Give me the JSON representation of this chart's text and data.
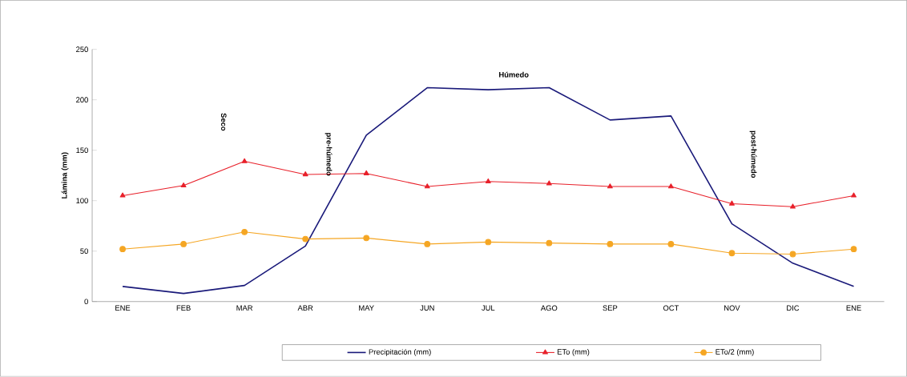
{
  "chart_data": {
    "type": "line",
    "ylabel": "Lámina (mm)",
    "categories": [
      "ENE",
      "FEB",
      "MAR",
      "ABR",
      "MAY",
      "JUN",
      "JUL",
      "AGO",
      "SEP",
      "OCT",
      "NOV",
      "DIC",
      "ENE"
    ],
    "series": [
      {
        "name": "Precipitación (mm)",
        "color": "#1a1a7a",
        "marker": "none",
        "values": [
          15,
          8,
          16,
          55,
          165,
          212,
          210,
          212,
          180,
          184,
          77,
          38,
          15
        ]
      },
      {
        "name": "ETo (mm)",
        "color": "#e8202a",
        "marker": "triangle",
        "values": [
          105,
          115,
          139,
          126,
          127,
          114,
          119,
          117,
          114,
          114,
          97,
          94,
          105
        ]
      },
      {
        "name": "ETo/2 (mm)",
        "color": "#f5a623",
        "marker": "circle",
        "values": [
          52,
          57,
          69,
          62,
          63,
          57,
          59,
          58,
          57,
          57,
          48,
          47,
          52
        ]
      }
    ],
    "ylim": [
      0,
      250
    ],
    "yticks": [
      0,
      50,
      100,
      150,
      200,
      250
    ],
    "legend": "bottom",
    "annotations": [
      "Seco",
      "pre-húmedo",
      "Húmedo",
      "post-húmedo"
    ]
  }
}
